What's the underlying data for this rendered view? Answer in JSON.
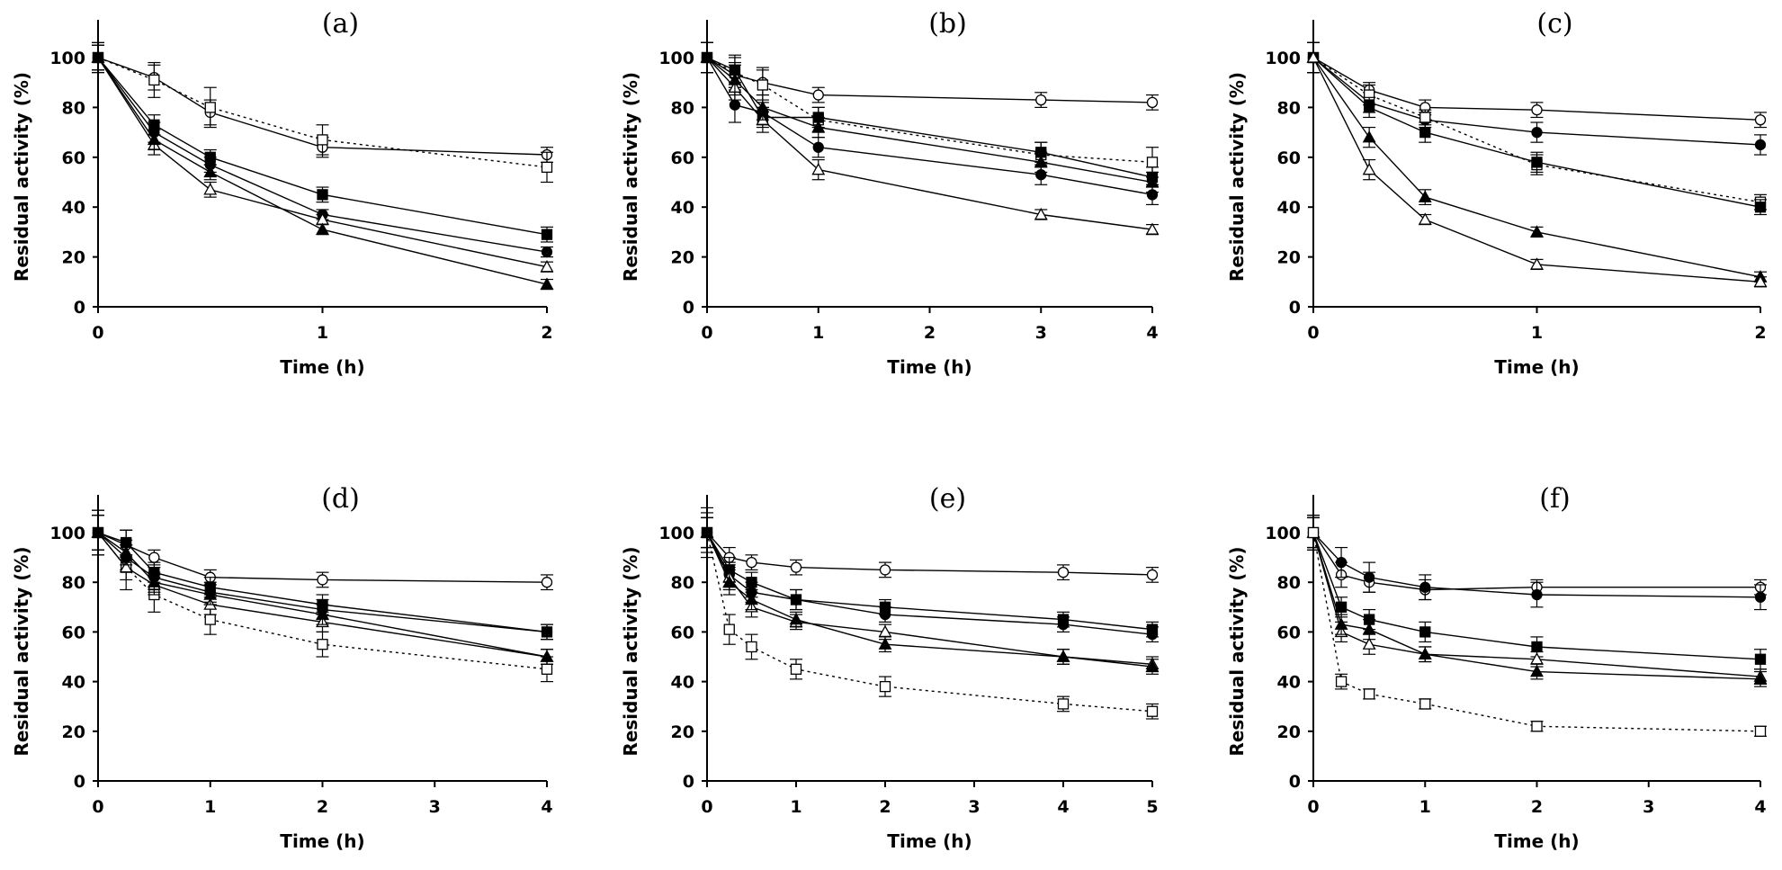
{
  "chart_data": [
    {
      "type": "line",
      "title": "(a)",
      "xlabel": "Time (h)",
      "ylabel": "Residual activity (%)",
      "xlim": [
        0,
        2
      ],
      "ylim": [
        0,
        100
      ],
      "xticks": [
        0,
        1,
        2
      ],
      "yticks": [
        0,
        20,
        40,
        60,
        80,
        100
      ],
      "x": [
        0,
        0.25,
        0.5,
        1,
        2
      ],
      "series": [
        {
          "marker": "open-circle",
          "dashed": false,
          "values": [
            100,
            92,
            78,
            64,
            61
          ],
          "errors": [
            6,
            5,
            5,
            4,
            3
          ]
        },
        {
          "marker": "open-square",
          "dashed": true,
          "values": [
            100,
            91,
            80,
            67,
            56
          ],
          "errors": [
            6,
            7,
            8,
            6,
            6
          ]
        },
        {
          "marker": "filled-square",
          "dashed": false,
          "values": [
            100,
            73,
            60,
            45,
            29
          ],
          "errors": [
            5,
            4,
            3,
            3,
            3
          ]
        },
        {
          "marker": "filled-circle",
          "dashed": false,
          "values": [
            100,
            70,
            57,
            37,
            22
          ],
          "errors": [
            5,
            4,
            3,
            2,
            2
          ]
        },
        {
          "marker": "open-triangle",
          "dashed": false,
          "values": [
            100,
            65,
            47,
            35,
            16
          ],
          "errors": [
            5,
            4,
            3,
            2,
            2
          ]
        },
        {
          "marker": "filled-triangle",
          "dashed": false,
          "values": [
            100,
            67,
            54,
            31,
            9
          ],
          "errors": [
            5,
            4,
            3,
            2,
            2
          ]
        }
      ]
    },
    {
      "type": "line",
      "title": "(b)",
      "xlabel": "Time (h)",
      "ylabel": "Residual activity (%)",
      "xlim": [
        0,
        4
      ],
      "ylim": [
        0,
        100
      ],
      "xticks": [
        0,
        1,
        2,
        3,
        4
      ],
      "yticks": [
        0,
        20,
        40,
        60,
        80,
        100
      ],
      "x": [
        0,
        0.25,
        0.5,
        1,
        3,
        4
      ],
      "series": [
        {
          "marker": "open-circle",
          "dashed": false,
          "values": [
            100,
            93,
            90,
            85,
            83,
            82
          ],
          "errors": [
            6,
            5,
            5,
            3,
            3,
            3
          ]
        },
        {
          "marker": "open-square",
          "dashed": true,
          "values": [
            100,
            94,
            89,
            75,
            61,
            58
          ],
          "errors": [
            6,
            7,
            7,
            5,
            5,
            6
          ]
        },
        {
          "marker": "filled-square",
          "dashed": false,
          "values": [
            100,
            95,
            76,
            76,
            62,
            52
          ],
          "errors": [
            6,
            5,
            4,
            4,
            4,
            4
          ]
        },
        {
          "marker": "filled-circle",
          "dashed": false,
          "values": [
            100,
            81,
            78,
            64,
            53,
            45
          ],
          "errors": [
            6,
            7,
            5,
            4,
            4,
            4
          ]
        },
        {
          "marker": "open-triangle",
          "dashed": false,
          "values": [
            100,
            88,
            75,
            55,
            37,
            31
          ],
          "errors": [
            6,
            5,
            5,
            4,
            2,
            2
          ]
        },
        {
          "marker": "filled-triangle",
          "dashed": false,
          "values": [
            100,
            91,
            80,
            72,
            58,
            50
          ],
          "errors": [
            6,
            6,
            5,
            4,
            4,
            4
          ]
        }
      ]
    },
    {
      "type": "line",
      "title": "(c)",
      "xlabel": "Time (h)",
      "ylabel": "Residual activity (%)",
      "xlim": [
        0,
        2
      ],
      "ylim": [
        0,
        100
      ],
      "xticks": [
        0,
        1,
        2
      ],
      "yticks": [
        0,
        20,
        40,
        60,
        80,
        100
      ],
      "x": [
        0,
        0.25,
        0.5,
        1,
        2
      ],
      "series": [
        {
          "marker": "open-circle",
          "dashed": false,
          "values": [
            100,
            87,
            80,
            79,
            75
          ],
          "errors": [
            6,
            3,
            3,
            3,
            3
          ]
        },
        {
          "marker": "filled-circle",
          "dashed": false,
          "values": [
            100,
            82,
            75,
            70,
            65
          ],
          "errors": [
            6,
            4,
            3,
            4,
            4
          ]
        },
        {
          "marker": "open-square",
          "dashed": true,
          "values": [
            100,
            85,
            76,
            57,
            42
          ],
          "errors": [
            6,
            4,
            3,
            4,
            3
          ]
        },
        {
          "marker": "filled-square",
          "dashed": false,
          "values": [
            100,
            80,
            70,
            58,
            40
          ],
          "errors": [
            6,
            4,
            4,
            4,
            3
          ]
        },
        {
          "marker": "filled-triangle",
          "dashed": false,
          "values": [
            100,
            68,
            44,
            30,
            12
          ],
          "errors": [
            6,
            4,
            3,
            2,
            2
          ]
        },
        {
          "marker": "open-triangle",
          "dashed": false,
          "values": [
            100,
            55,
            35,
            17,
            10
          ],
          "errors": [
            6,
            4,
            2,
            2,
            2
          ]
        }
      ]
    },
    {
      "type": "line",
      "title": "(d)",
      "xlabel": "Time (h)",
      "ylabel": "Residual activity (%)",
      "xlim": [
        0,
        4
      ],
      "ylim": [
        0,
        100
      ],
      "xticks": [
        0,
        1,
        2,
        3,
        4
      ],
      "yticks": [
        0,
        20,
        40,
        60,
        80,
        100
      ],
      "x": [
        0,
        0.25,
        0.5,
        1,
        2,
        4
      ],
      "series": [
        {
          "marker": "open-circle",
          "dashed": false,
          "values": [
            100,
            95,
            90,
            82,
            81,
            80
          ],
          "errors": [
            9,
            6,
            3,
            3,
            3,
            3
          ]
        },
        {
          "marker": "open-square",
          "dashed": true,
          "values": [
            100,
            86,
            75,
            65,
            55,
            45
          ],
          "errors": [
            9,
            9,
            7,
            6,
            5,
            5
          ]
        },
        {
          "marker": "filled-square",
          "dashed": false,
          "values": [
            100,
            96,
            84,
            78,
            71,
            60
          ],
          "errors": [
            7,
            5,
            4,
            4,
            4,
            3
          ]
        },
        {
          "marker": "filled-circle",
          "dashed": false,
          "values": [
            100,
            90,
            82,
            76,
            69,
            60
          ],
          "errors": [
            7,
            5,
            4,
            4,
            4,
            3
          ]
        },
        {
          "marker": "open-triangle",
          "dashed": false,
          "values": [
            100,
            86,
            79,
            71,
            64,
            50
          ],
          "errors": [
            7,
            5,
            4,
            4,
            4,
            3
          ]
        },
        {
          "marker": "filled-triangle",
          "dashed": false,
          "values": [
            100,
            92,
            80,
            75,
            67,
            50
          ],
          "errors": [
            7,
            5,
            4,
            4,
            4,
            3
          ]
        }
      ]
    },
    {
      "type": "line",
      "title": "(e)",
      "xlabel": "Time (h)",
      "ylabel": "Residual activity (%)",
      "xlim": [
        0,
        5
      ],
      "ylim": [
        0,
        100
      ],
      "xticks": [
        0,
        1,
        2,
        3,
        4,
        5
      ],
      "yticks": [
        0,
        20,
        40,
        60,
        80,
        100
      ],
      "x": [
        0,
        0.25,
        0.5,
        1,
        2,
        4,
        5
      ],
      "series": [
        {
          "marker": "open-circle",
          "dashed": false,
          "values": [
            100,
            90,
            88,
            86,
            85,
            84,
            83
          ],
          "errors": [
            10,
            4,
            3,
            3,
            3,
            3,
            3
          ]
        },
        {
          "marker": "open-square",
          "dashed": true,
          "values": [
            100,
            61,
            54,
            45,
            38,
            31,
            28
          ],
          "errors": [
            8,
            6,
            5,
            4,
            4,
            3,
            3
          ]
        },
        {
          "marker": "filled-square",
          "dashed": false,
          "values": [
            100,
            85,
            80,
            73,
            70,
            65,
            61
          ],
          "errors": [
            6,
            5,
            4,
            4,
            3,
            3,
            3
          ]
        },
        {
          "marker": "filled-circle",
          "dashed": false,
          "values": [
            100,
            83,
            76,
            73,
            67,
            63,
            59
          ],
          "errors": [
            6,
            5,
            4,
            4,
            3,
            3,
            3
          ]
        },
        {
          "marker": "open-triangle",
          "dashed": false,
          "values": [
            100,
            82,
            70,
            64,
            60,
            50,
            47
          ],
          "errors": [
            6,
            5,
            4,
            3,
            3,
            3,
            3
          ]
        },
        {
          "marker": "filled-triangle",
          "dashed": false,
          "values": [
            100,
            80,
            73,
            65,
            55,
            50,
            46
          ],
          "errors": [
            6,
            5,
            4,
            3,
            3,
            3,
            3
          ]
        }
      ]
    },
    {
      "type": "line",
      "title": "(f)",
      "xlabel": "Time (h)",
      "ylabel": "Residual activity (%)",
      "xlim": [
        0,
        4
      ],
      "ylim": [
        0,
        100
      ],
      "xticks": [
        0,
        1,
        2,
        3,
        4
      ],
      "yticks": [
        0,
        20,
        40,
        60,
        80,
        100
      ],
      "x": [
        0,
        0.25,
        0.5,
        1,
        2,
        4
      ],
      "series": [
        {
          "marker": "open-circle",
          "dashed": false,
          "values": [
            100,
            83,
            80,
            77,
            78,
            78
          ],
          "errors": [
            7,
            5,
            4,
            4,
            3,
            3
          ]
        },
        {
          "marker": "filled-circle",
          "dashed": false,
          "values": [
            100,
            88,
            82,
            78,
            75,
            74
          ],
          "errors": [
            7,
            6,
            6,
            5,
            5,
            5
          ]
        },
        {
          "marker": "filled-square",
          "dashed": false,
          "values": [
            100,
            70,
            65,
            60,
            54,
            49
          ],
          "errors": [
            6,
            4,
            4,
            4,
            4,
            4
          ]
        },
        {
          "marker": "open-triangle",
          "dashed": false,
          "values": [
            100,
            60,
            55,
            51,
            49,
            42
          ],
          "errors": [
            6,
            4,
            4,
            3,
            3,
            3
          ]
        },
        {
          "marker": "filled-triangle",
          "dashed": false,
          "values": [
            100,
            63,
            61,
            51,
            44,
            41
          ],
          "errors": [
            6,
            4,
            4,
            3,
            3,
            3
          ]
        },
        {
          "marker": "open-square",
          "dashed": true,
          "values": [
            100,
            40,
            35,
            31,
            22,
            20
          ],
          "errors": [
            6,
            3,
            2,
            2,
            2,
            2
          ]
        }
      ]
    }
  ]
}
